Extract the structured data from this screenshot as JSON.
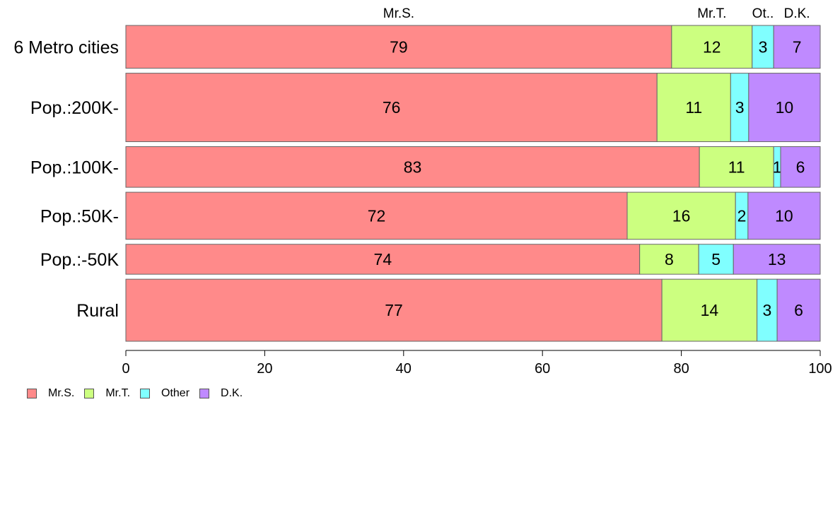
{
  "chart_data": {
    "type": "bar",
    "orientation": "horizontal",
    "stacked": true,
    "categories": [
      "6 Metro cities",
      "Pop.:200K-",
      "Pop.:100K-",
      "Pop.:50K-",
      "Pop.:-50K",
      "Rural"
    ],
    "series": [
      {
        "name": "Mr.S.",
        "color": "#ff8a8a",
        "values": [
          78.6,
          76.5,
          82.6,
          72.2,
          74.0,
          77.2
        ]
      },
      {
        "name": "Mr.T.",
        "color": "#ccff80",
        "values": [
          11.6,
          10.6,
          10.7,
          15.6,
          8.5,
          13.7
        ]
      },
      {
        "name": "Other",
        "color": "#80ffff",
        "values": [
          3.1,
          2.6,
          1.0,
          1.8,
          5.0,
          2.9
        ]
      },
      {
        "name": "D.K.",
        "color": "#bf8aff",
        "values": [
          6.7,
          10.3,
          5.7,
          10.4,
          12.5,
          6.2
        ]
      }
    ],
    "value_labels": [
      [
        "79",
        "12",
        "3",
        "7"
      ],
      [
        "76",
        "11",
        "3",
        "10"
      ],
      [
        "83",
        "11",
        "1",
        "6"
      ],
      [
        "72",
        "16",
        "2",
        "10"
      ],
      [
        "74",
        "8",
        "5",
        "13"
      ],
      [
        "77",
        "14",
        "3",
        "6"
      ]
    ],
    "row_weights": [
      1.0,
      1.6,
      0.95,
      1.1,
      0.7,
      1.45
    ],
    "top_labels": [
      "Mr.S.",
      "Mr.T.",
      "Ot..",
      "D.K."
    ],
    "xlim": [
      0,
      100
    ],
    "x_ticks": [
      "0",
      "20",
      "40",
      "60",
      "80",
      "100"
    ],
    "legend_position": "bottom-left",
    "grid": false,
    "title": "",
    "xlabel": "",
    "ylabel": ""
  }
}
